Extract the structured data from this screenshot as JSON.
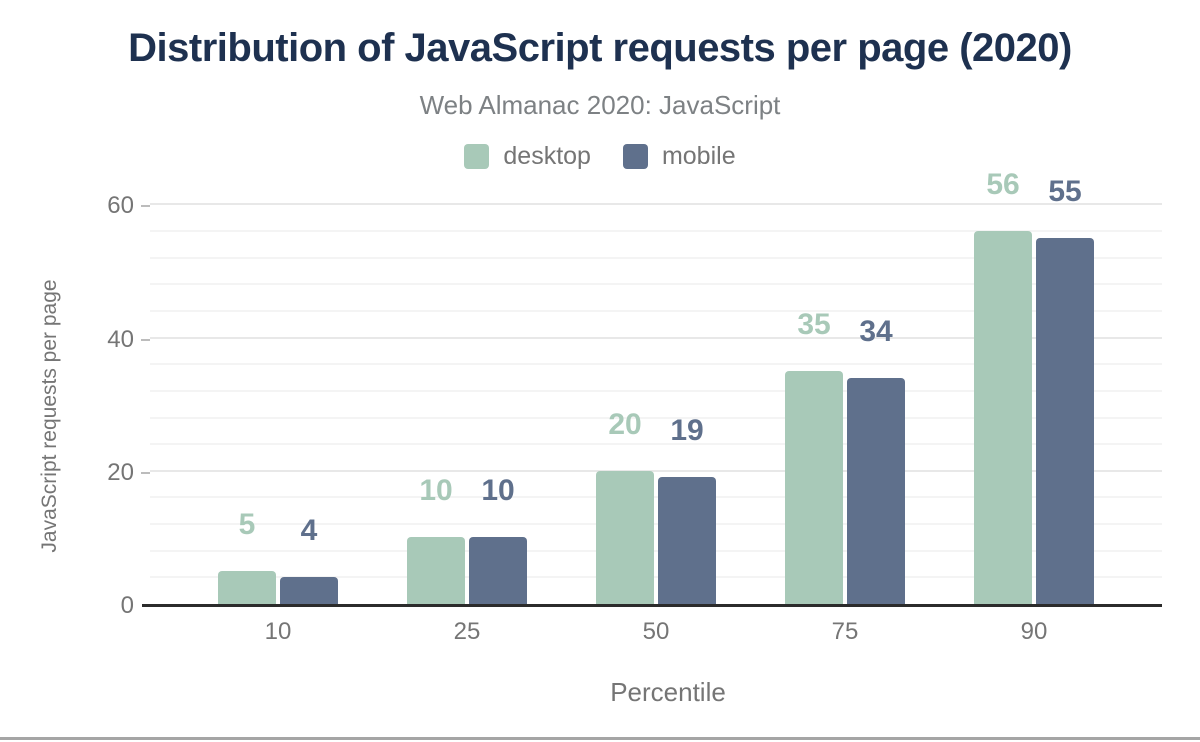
{
  "chart_data": {
    "type": "bar",
    "title": "Distribution of JavaScript requests per page (2020)",
    "subtitle": "Web Almanac 2020: JavaScript",
    "categories": [
      "10",
      "25",
      "50",
      "75",
      "90"
    ],
    "series": [
      {
        "name": "desktop",
        "color": "#a8c9b8",
        "values": [
          5,
          10,
          20,
          35,
          56
        ]
      },
      {
        "name": "mobile",
        "color": "#5f708c",
        "values": [
          4,
          10,
          19,
          34,
          55
        ]
      }
    ],
    "xlabel": "Percentile",
    "ylabel": "JavaScript requests per page",
    "yticks": [
      0,
      20,
      40,
      60
    ],
    "ylim": [
      0,
      60
    ],
    "minor_grid_step": 4,
    "grid": true,
    "legend_position": "top",
    "data_labels": true
  },
  "colors": {
    "title": "#1e3150",
    "subtitle_text": "#7d8184",
    "axis_text": "#757575",
    "major_grid": "#e8e8e8",
    "minor_grid": "#f4f4f4",
    "axis_line": "#2b2b2b"
  }
}
